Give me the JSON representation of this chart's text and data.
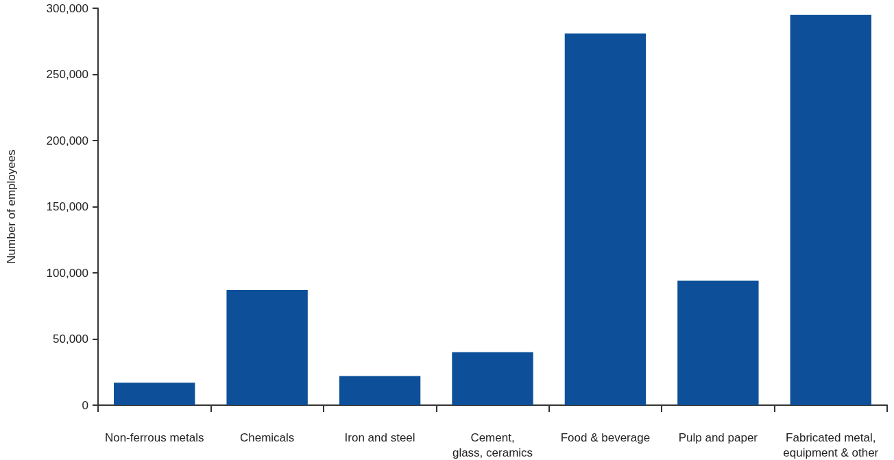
{
  "chart_data": {
    "type": "bar",
    "ylabel": "Number of employees",
    "categories": [
      "Non-ferrous metals",
      "Chemicals",
      "Iron and steel",
      "Cement,\nglass, ceramics",
      "Food & beverage",
      "Pulp and paper",
      "Fabricated metal,\nequipment & other"
    ],
    "values": [
      17000,
      87000,
      22000,
      40000,
      281000,
      94000,
      295000
    ],
    "color": "#0d5099",
    "ylim": [
      0,
      300000
    ],
    "yticks": [
      {
        "value": 0,
        "label": "0"
      },
      {
        "value": 50000,
        "label": "50,000"
      },
      {
        "value": 100000,
        "label": "100,000"
      },
      {
        "value": 150000,
        "label": "150,000"
      },
      {
        "value": 200000,
        "label": "200,000"
      },
      {
        "value": 250000,
        "label": "250,000"
      },
      {
        "value": 300000,
        "label": "300,000"
      }
    ],
    "grid": false
  }
}
